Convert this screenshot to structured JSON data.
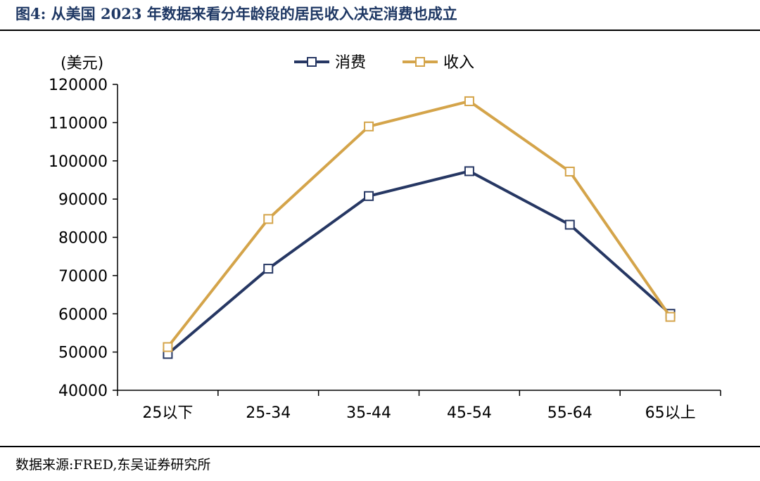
{
  "figure": {
    "title": "图4:  从美国 2023 年数据来看分年龄段的居民收入决定消费也成立",
    "source": "数据来源:FRED,东吴证券研究所"
  },
  "colors": {
    "title": "#1f3864",
    "consumption": "#263763",
    "income": "#d4a44a"
  },
  "chart_data": {
    "type": "line",
    "title": "",
    "ylabel": "(美元)",
    "xlabel": "",
    "categories": [
      "25以下",
      "25-34",
      "35-44",
      "45-54",
      "55-64",
      "65以上"
    ],
    "ylim": [
      40000,
      120000
    ],
    "yticks": [
      40000,
      50000,
      60000,
      70000,
      80000,
      90000,
      100000,
      110000,
      120000
    ],
    "grid": false,
    "legend_position": "top-center",
    "marker": "square",
    "series": [
      {
        "name": "消费",
        "color": "#263763",
        "values": [
          49500,
          71800,
          90800,
          97300,
          83300,
          60000
        ]
      },
      {
        "name": "收入",
        "color": "#d4a44a",
        "values": [
          51300,
          84800,
          109000,
          115600,
          97200,
          59200
        ]
      }
    ]
  }
}
